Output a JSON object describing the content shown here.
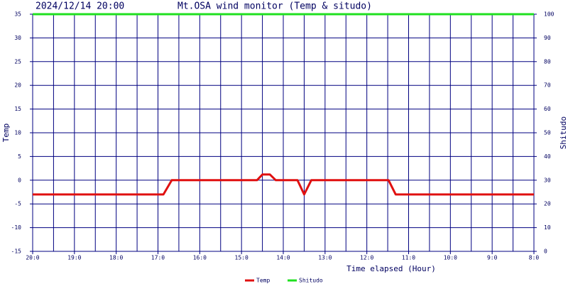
{
  "chart_data": {
    "type": "line",
    "timestamp": "2024/12/14 20:00",
    "title": "Mt.OSA wind monitor (Temp & situdo)",
    "x_label": "Time elapsed (Hour)",
    "y_label": "Temp",
    "y2_label": "Shitudo",
    "xlim": [
      0,
      12
    ],
    "xticks": [
      {
        "value": 0,
        "label": "20:0"
      },
      {
        "value": 1,
        "label": "19:0"
      },
      {
        "value": 2,
        "label": "18:0"
      },
      {
        "value": 3,
        "label": "17:0"
      },
      {
        "value": 4,
        "label": "16:0"
      },
      {
        "value": 5,
        "label": "15:0"
      },
      {
        "value": 6,
        "label": "14:0"
      },
      {
        "value": 7,
        "label": "13:0"
      },
      {
        "value": 8,
        "label": "12:0"
      },
      {
        "value": 9,
        "label": "11:0"
      },
      {
        "value": 10,
        "label": "10:0"
      },
      {
        "value": 11,
        "label": "9:0"
      },
      {
        "value": 12,
        "label": "8:0"
      }
    ],
    "ylim": [
      -15,
      35
    ],
    "yticks": [
      -15,
      -10,
      -5,
      0,
      5,
      10,
      15,
      20,
      25,
      30,
      35
    ],
    "y2lim": [
      0,
      100
    ],
    "y2ticks": [
      0,
      10,
      20,
      30,
      40,
      50,
      60,
      70,
      80,
      90,
      100
    ],
    "grid": true,
    "legend": "bottom",
    "series": [
      {
        "name": "Temp",
        "color": "#e01010",
        "x": [
          0,
          3.13,
          3.33,
          5.37,
          5.5,
          5.68,
          5.82,
          6.34,
          6.5,
          6.67,
          8.52,
          8.69,
          12
        ],
        "values": [
          -3,
          -3,
          0,
          0,
          1.2,
          1.2,
          0,
          0,
          -3,
          0,
          0,
          -3,
          -3
        ]
      },
      {
        "name": "Shitudo",
        "color": "#20e020",
        "axis": "y2",
        "x": [
          0,
          12
        ],
        "values": [
          100,
          100
        ]
      }
    ]
  }
}
